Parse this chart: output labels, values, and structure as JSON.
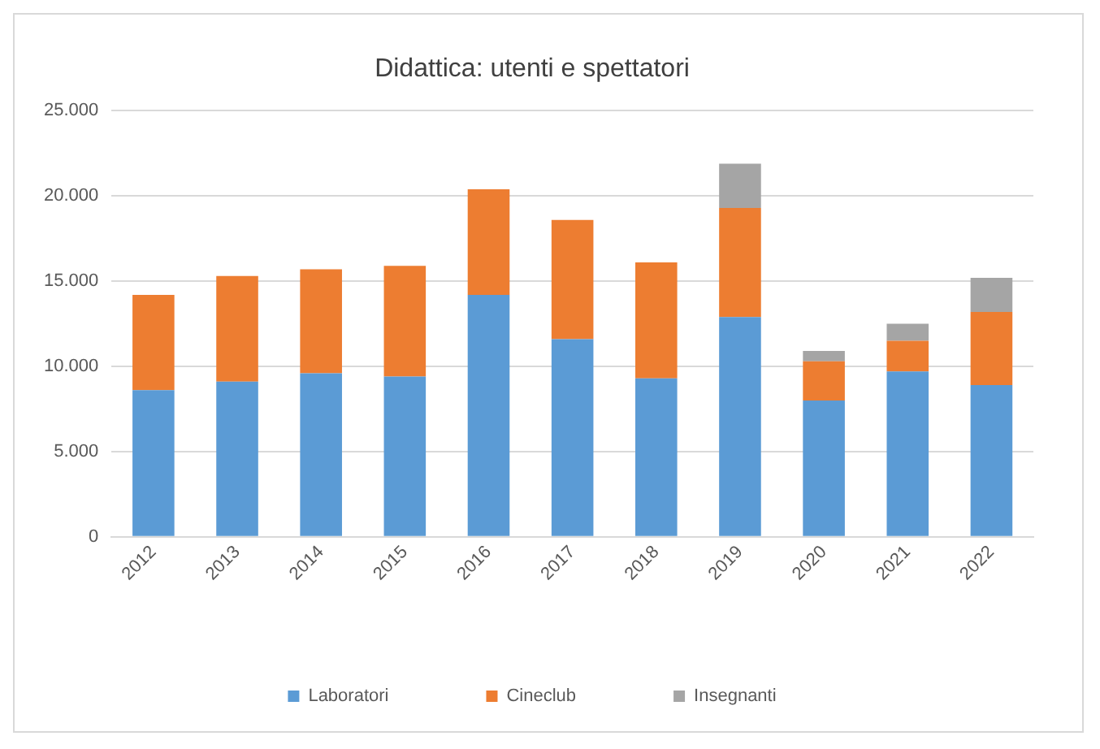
{
  "chart_data": {
    "type": "bar",
    "title": "Didattica: utenti e spettatori",
    "stacked": true,
    "categories": [
      "2012",
      "2013",
      "2014",
      "2015",
      "2016",
      "2017",
      "2018",
      "2019",
      "2020",
      "2021",
      "2022"
    ],
    "series": [
      {
        "name": "Laboratori",
        "color": "#5b9bd5",
        "values": [
          8600,
          9100,
          9600,
          9400,
          14200,
          11600,
          9300,
          12900,
          8000,
          9700,
          8900
        ]
      },
      {
        "name": "Cineclub",
        "color": "#ed7d31",
        "values": [
          5600,
          6200,
          6100,
          6500,
          6200,
          7000,
          6800,
          6400,
          2300,
          1800,
          4300
        ]
      },
      {
        "name": "Insegnanti",
        "color": "#a5a5a5",
        "values": [
          null,
          null,
          null,
          null,
          null,
          null,
          null,
          2600,
          600,
          1000,
          2000
        ]
      }
    ],
    "ylim": [
      0,
      25000
    ],
    "yticks": [
      0,
      {
        "value": 5000,
        "label": "5.000"
      },
      {
        "value": 10000,
        "label": "10.000"
      },
      {
        "value": 15000,
        "label": "15.000"
      },
      {
        "value": 20000,
        "label": "20.000"
      },
      {
        "value": 25000,
        "label": "25.000"
      }
    ],
    "grid": "y",
    "legend": "bottom"
  }
}
